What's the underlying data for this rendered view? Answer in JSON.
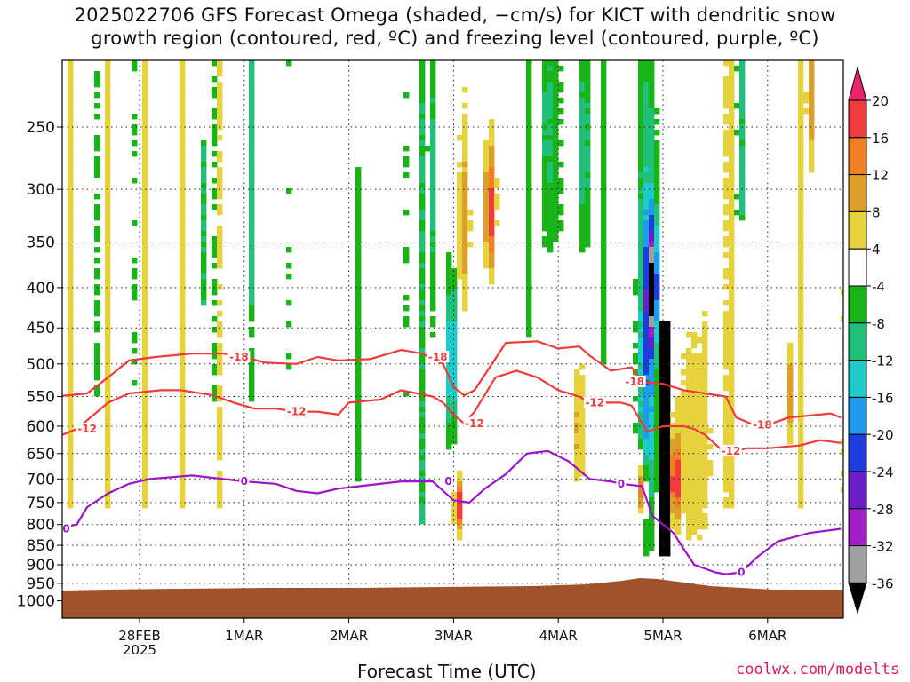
{
  "header": {
    "title_line1": "2025022706 GFS Forecast Omega (shaded, −cm/s) for KICT with dendritic snow",
    "title_line2": "growth region (contoured, red, ºC) and freezing level (contoured, purple, ºC)"
  },
  "footer": {
    "xlabel": "Forecast Time (UTC)",
    "credit": "coolwx.com/modelts"
  },
  "chart_data": {
    "type": "heatmap",
    "title": "2025022706 GFS Forecast Omega (shaded, −cm/s) for KICT with dendritic snow growth region (contoured, red, ºC) and freezing level (contoured, purple, ºC)",
    "xlabel": "Forecast Time (UTC)",
    "ylabel": "",
    "y_scale": "log-pressure (inverted)",
    "y_ticks": [
      250,
      300,
      350,
      400,
      450,
      500,
      550,
      600,
      650,
      700,
      750,
      800,
      850,
      900,
      950,
      1000
    ],
    "x_ticks": [
      "28FEB",
      "1MAR",
      "2MAR",
      "3MAR",
      "4MAR",
      "5MAR",
      "6MAR"
    ],
    "x_tick_sublabel": "2025",
    "grid": true,
    "colorbar": {
      "labels": [
        20,
        16,
        12,
        8,
        4,
        -4,
        -8,
        -12,
        -16,
        -20,
        -24,
        -28,
        -32,
        -36
      ],
      "colors": [
        "#e8246e",
        "#f03c3c",
        "#f07f26",
        "#dca02a",
        "#e6d23c",
        "#ffffff",
        "#18b418",
        "#20c07a",
        "#1ecbc8",
        "#1e9ceb",
        "#1e3cdc",
        "#6a1ec8",
        "#a21ec8",
        "#a0a0a0",
        "#000000"
      ]
    },
    "contours": {
      "dgz_label_minus18": "-18",
      "dgz_label_minus12": "-12",
      "freezing_label": "0",
      "dgz_minus18_hpa": [
        [
          -0.8,
          550
        ],
        [
          -0.5,
          545
        ],
        [
          -0.3,
          520
        ],
        [
          -0.1,
          495
        ],
        [
          0.15,
          490
        ],
        [
          0.5,
          485
        ],
        [
          0.8,
          485
        ],
        [
          1.0,
          490
        ],
        [
          1.2,
          498
        ],
        [
          1.5,
          500
        ],
        [
          1.7,
          490
        ],
        [
          1.9,
          495
        ],
        [
          2.2,
          493
        ],
        [
          2.5,
          480
        ],
        [
          2.7,
          485
        ],
        [
          2.9,
          500
        ],
        [
          3.0,
          535
        ],
        [
          3.1,
          548
        ],
        [
          3.2,
          540
        ],
        [
          3.5,
          470
        ],
        [
          3.8,
          468
        ],
        [
          4.0,
          478
        ],
        [
          4.2,
          475
        ],
        [
          4.3,
          488
        ],
        [
          4.5,
          510
        ],
        [
          4.7,
          505
        ],
        [
          4.8,
          527
        ],
        [
          5.0,
          530
        ],
        [
          5.2,
          540
        ],
        [
          5.4,
          545
        ],
        [
          5.6,
          550
        ],
        [
          5.7,
          585
        ],
        [
          5.9,
          600
        ],
        [
          6.0,
          598
        ],
        [
          6.2,
          585
        ],
        [
          6.5,
          580
        ],
        [
          6.6,
          578
        ],
        [
          6.7,
          585
        ]
      ],
      "dgz_minus12_hpa": [
        [
          -0.8,
          620
        ],
        [
          -0.6,
          605
        ],
        [
          -0.3,
          560
        ],
        [
          -0.1,
          545
        ],
        [
          0.2,
          540
        ],
        [
          0.4,
          540
        ],
        [
          0.7,
          548
        ],
        [
          0.9,
          560
        ],
        [
          1.1,
          570
        ],
        [
          1.3,
          570
        ],
        [
          1.5,
          575
        ],
        [
          1.7,
          575
        ],
        [
          1.9,
          580
        ],
        [
          2.0,
          560
        ],
        [
          2.3,
          555
        ],
        [
          2.5,
          540
        ],
        [
          2.8,
          550
        ],
        [
          2.9,
          560
        ],
        [
          3.0,
          580
        ],
        [
          3.1,
          595
        ],
        [
          3.2,
          575
        ],
        [
          3.4,
          520
        ],
        [
          3.6,
          510
        ],
        [
          3.8,
          520
        ],
        [
          4.0,
          540
        ],
        [
          4.2,
          550
        ],
        [
          4.3,
          560
        ],
        [
          4.6,
          560
        ],
        [
          4.7,
          565
        ],
        [
          4.85,
          610
        ],
        [
          5.0,
          600
        ],
        [
          5.2,
          600
        ],
        [
          5.3,
          605
        ],
        [
          5.4,
          615
        ],
        [
          5.6,
          650
        ],
        [
          5.8,
          640
        ],
        [
          6.0,
          640
        ],
        [
          6.3,
          635
        ],
        [
          6.5,
          625
        ],
        [
          6.7,
          630
        ]
      ],
      "freezing_hpa": [
        [
          -0.8,
          810
        ],
        [
          -0.6,
          800
        ],
        [
          -0.5,
          760
        ],
        [
          -0.3,
          730
        ],
        [
          -0.1,
          710
        ],
        [
          0.1,
          700
        ],
        [
          0.5,
          693
        ],
        [
          0.8,
          700
        ],
        [
          1.0,
          705
        ],
        [
          1.3,
          710
        ],
        [
          1.5,
          725
        ],
        [
          1.7,
          730
        ],
        [
          1.9,
          720
        ],
        [
          2.1,
          715
        ],
        [
          2.5,
          705
        ],
        [
          2.8,
          705
        ],
        [
          3.0,
          745
        ],
        [
          3.15,
          750
        ],
        [
          3.3,
          720
        ],
        [
          3.5,
          690
        ],
        [
          3.7,
          650
        ],
        [
          3.9,
          645
        ],
        [
          4.1,
          665
        ],
        [
          4.3,
          700
        ],
        [
          4.5,
          705
        ],
        [
          4.6,
          710
        ],
        [
          4.8,
          715
        ],
        [
          4.9,
          780
        ],
        [
          5.1,
          820
        ],
        [
          5.2,
          860
        ],
        [
          5.3,
          900
        ],
        [
          5.5,
          920
        ],
        [
          5.6,
          925
        ],
        [
          5.75,
          920
        ],
        [
          5.9,
          880
        ],
        [
          6.1,
          840
        ],
        [
          6.4,
          820
        ],
        [
          6.7,
          810
        ]
      ]
    },
    "omega_features": [
      {
        "x_day": 3.35,
        "p_top": 270,
        "p_bot": 380,
        "value": 18
      },
      {
        "x_day": 3.05,
        "p_top": 700,
        "p_bot": 820,
        "value": 18
      },
      {
        "x_day": 4.85,
        "p_top": 650,
        "p_bot": 780,
        "value": 20
      },
      {
        "x_day": 5.1,
        "p_top": 620,
        "p_bot": 780,
        "value": 20
      },
      {
        "x_day": 4.9,
        "p_top": 380,
        "p_bot": 450,
        "value": -28
      },
      {
        "x_day": 5.0,
        "p_top": 440,
        "p_bot": 880,
        "value": -40
      },
      {
        "x_day": 3.0,
        "p_top": 400,
        "p_bot": 620,
        "value": -20
      },
      {
        "x_day": 4.8,
        "p_top": 340,
        "p_bot": 900,
        "value": -14
      }
    ]
  }
}
